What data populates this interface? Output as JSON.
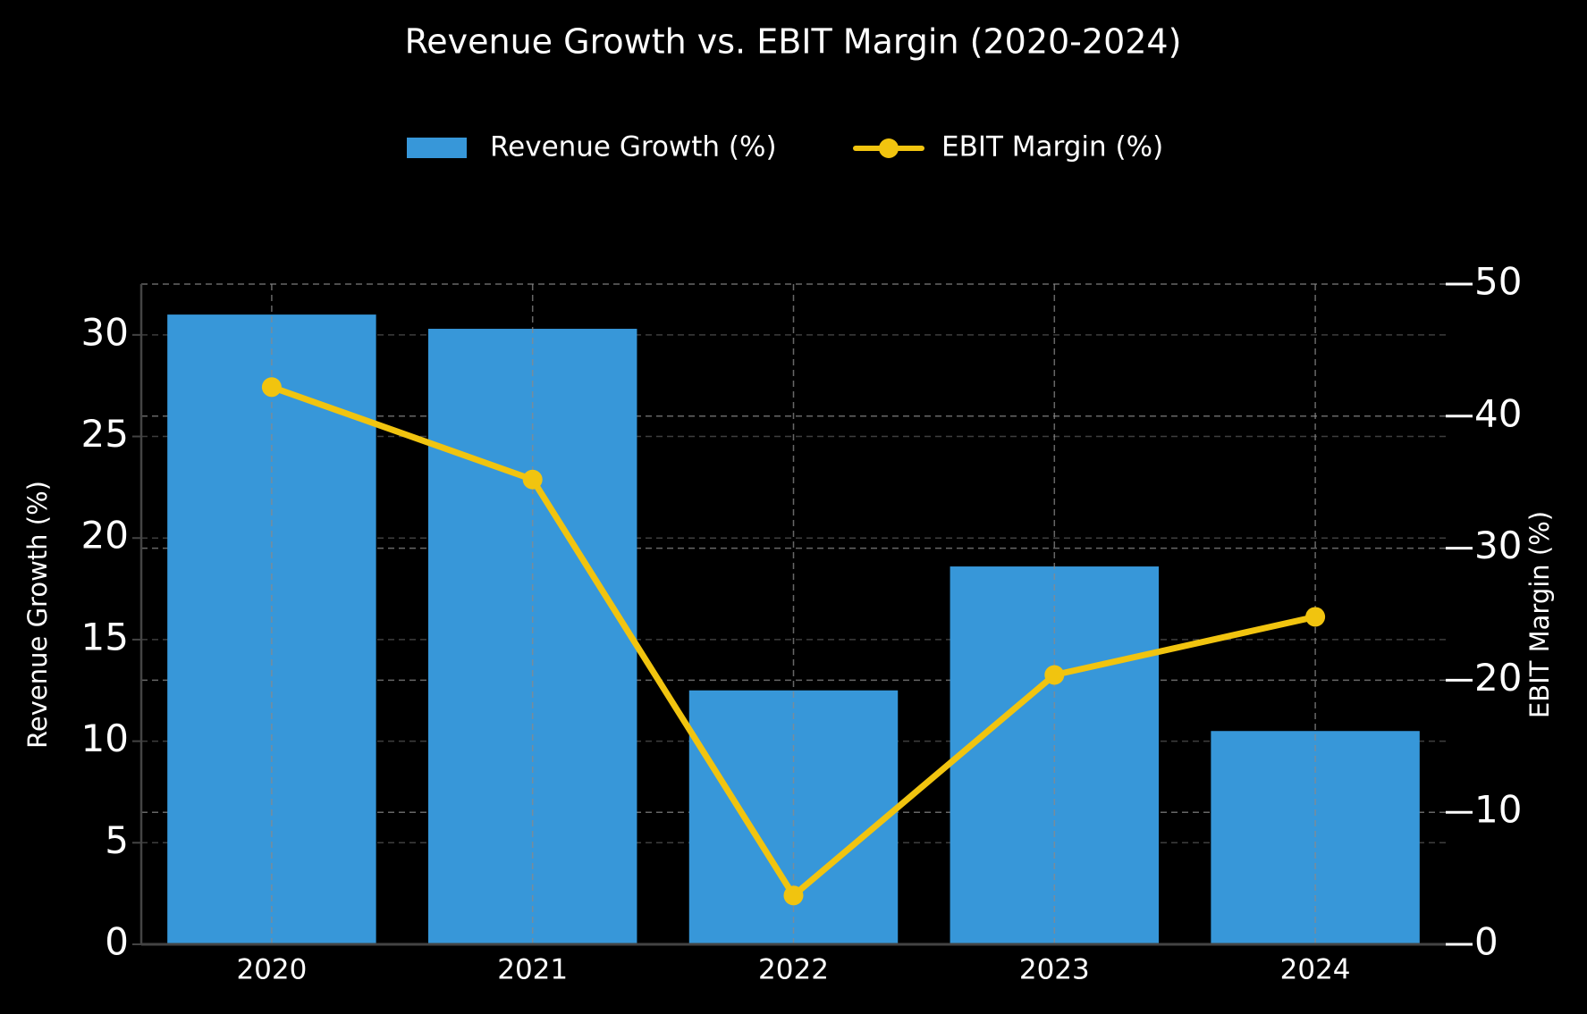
{
  "chart_data": {
    "type": "bar",
    "title": "Revenue Growth vs. EBIT Margin (2020-2024)",
    "categories": [
      "2020",
      "2021",
      "2022",
      "2023",
      "2024"
    ],
    "series": [
      {
        "name": "Revenue Growth (%)",
        "type": "bar",
        "axis": "left",
        "values": [
          31.0,
          30.3,
          12.5,
          18.6,
          10.5
        ]
      },
      {
        "name": "EBIT Margin (%)",
        "type": "line",
        "axis": "right",
        "values": [
          42.2,
          35.2,
          3.7,
          20.4,
          24.8
        ]
      }
    ],
    "ylabel": "Revenue Growth (%)",
    "y2label": "EBIT Margin (%)",
    "ylim": [
      0,
      32.5
    ],
    "y2lim": [
      0,
      50
    ],
    "yticks": [
      "0",
      "5",
      "10",
      "15",
      "20",
      "25",
      "30"
    ],
    "y2ticks": [
      "0",
      "10",
      "20",
      "30",
      "40",
      "50"
    ],
    "grid": true,
    "legend_position": "top-center",
    "colors": {
      "background": "#000000",
      "bar": "#3797d9",
      "line": "#f1c40f",
      "text": "#ffffff",
      "grid": "#8a8a8a"
    }
  }
}
